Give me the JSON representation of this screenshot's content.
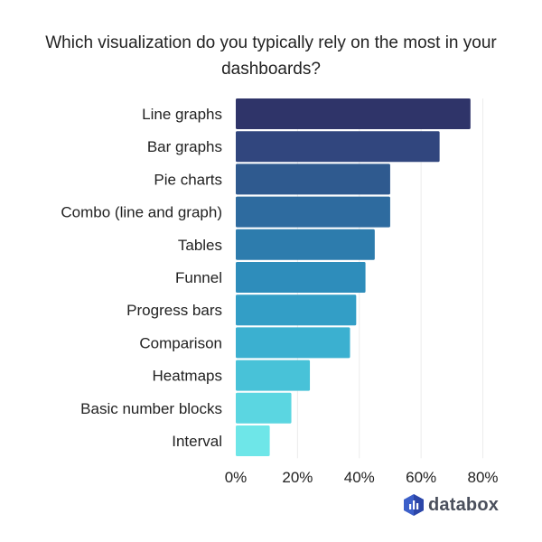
{
  "chart_data": {
    "type": "bar",
    "orientation": "horizontal",
    "title": "Which visualization do you typically rely on the most in your dashboards?",
    "categories": [
      "Line graphs",
      "Bar graphs",
      "Pie charts",
      "Combo (line and graph)",
      "Tables",
      "Funnel",
      "Progress bars",
      "Comparison",
      "Heatmaps",
      "Basic number blocks",
      "Interval"
    ],
    "values": [
      76,
      66,
      50,
      50,
      45,
      42,
      39,
      37,
      24,
      18,
      11
    ],
    "unit": "%",
    "xlim": [
      0,
      80
    ],
    "xticks": [
      "0%",
      "20%",
      "40%",
      "60%",
      "80%"
    ],
    "xtick_values": [
      0,
      20,
      40,
      60,
      80
    ],
    "grid": true,
    "colors": [
      "#2f3469",
      "#31467e",
      "#2f5a8f",
      "#2e6b9f",
      "#2d7cad",
      "#2e8dbb",
      "#339ec6",
      "#3bb0d0",
      "#48c2d8",
      "#5bd6e1",
      "#6ee6e8"
    ]
  },
  "brand": {
    "name": "databox",
    "color": "#3c5fc9"
  }
}
